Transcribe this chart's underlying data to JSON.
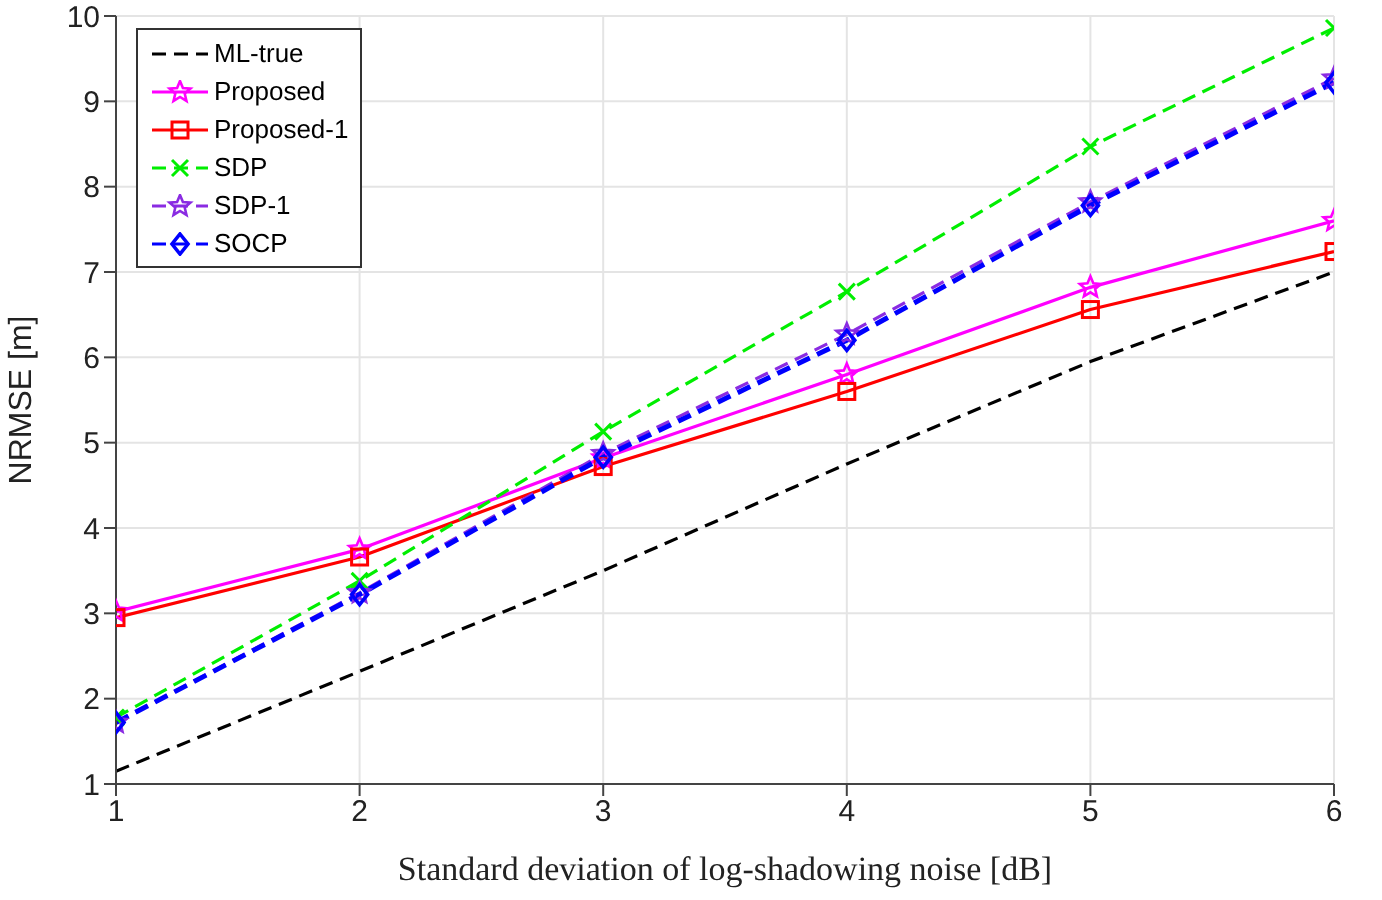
{
  "chart_data": {
    "type": "line",
    "xlabel": "Standard deviation of log-shadowing noise [dB]",
    "ylabel": "NRMSE [m]",
    "x": [
      1,
      2,
      3,
      4,
      5,
      6
    ],
    "xlim": [
      1,
      6
    ],
    "xticks": [
      1,
      2,
      3,
      4,
      5,
      6
    ],
    "ylim": [
      1,
      10
    ],
    "yticks": [
      1,
      2,
      3,
      4,
      5,
      6,
      7,
      8,
      9,
      10
    ],
    "grid": true,
    "legend": "top left",
    "series": [
      {
        "name": "ML-true",
        "color": "#000000",
        "marker": "none",
        "line_style": "dashed",
        "values": [
          1.15,
          2.32,
          3.5,
          4.75,
          5.95,
          7.0
        ]
      },
      {
        "name": "Proposed",
        "color": "#ff00ff",
        "marker": "star",
        "line_style": "solid",
        "values": [
          3.02,
          3.75,
          4.82,
          5.8,
          6.82,
          7.6
        ]
      },
      {
        "name": "Proposed-1",
        "color": "#ff0000",
        "marker": "square",
        "line_style": "solid",
        "values": [
          2.95,
          3.66,
          4.72,
          5.6,
          6.56,
          7.24
        ]
      },
      {
        "name": "SDP",
        "color": "#00ee00",
        "marker": "cross",
        "line_style": "dashed",
        "values": [
          1.78,
          3.38,
          5.13,
          6.77,
          8.47,
          9.86
        ]
      },
      {
        "name": "SDP-1",
        "color": "#8a2be2",
        "marker": "star",
        "line_style": "dashed",
        "values": [
          1.72,
          3.24,
          4.87,
          6.27,
          7.82,
          9.27
        ]
      },
      {
        "name": "SOCP",
        "color": "#0000ff",
        "marker": "diamond",
        "line_style": "dashed",
        "values": [
          1.72,
          3.22,
          4.83,
          6.2,
          7.78,
          9.22
        ]
      }
    ]
  }
}
